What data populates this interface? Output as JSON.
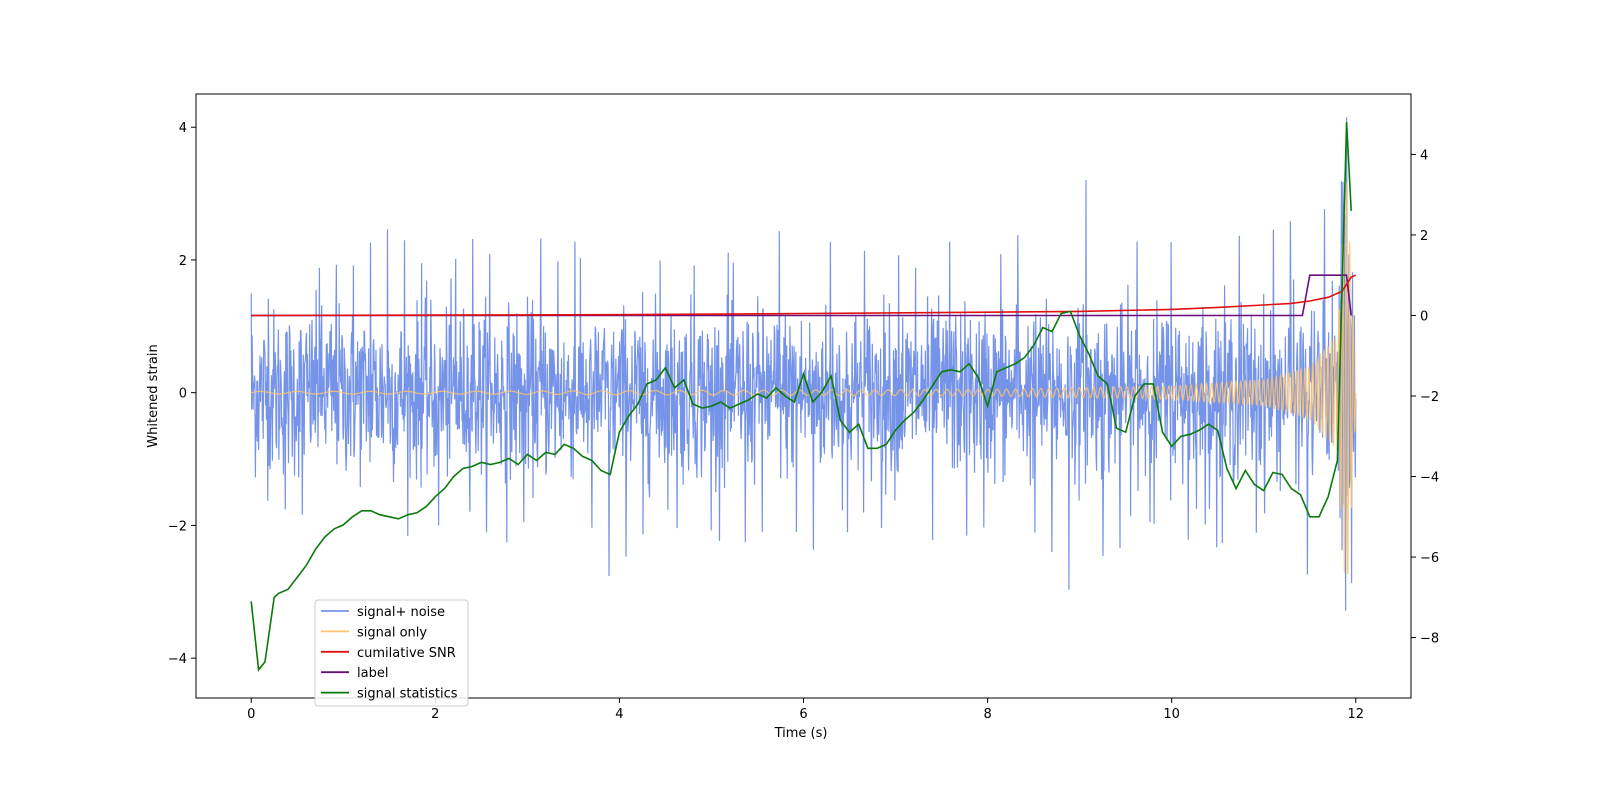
{
  "chart_data": {
    "type": "line",
    "xlabel": "Time (s)",
    "ylabel": "Whitened strain",
    "xlim": [
      -0.6,
      12.6
    ],
    "ylim": [
      -4.6,
      4.5
    ],
    "y2lim": [
      -9.5,
      5.5
    ],
    "x_ticks": [
      0,
      2,
      4,
      6,
      8,
      10,
      12
    ],
    "y_ticks": [
      -4,
      -2,
      0,
      2,
      4
    ],
    "y2_ticks": [
      -8,
      -6,
      -4,
      -2,
      0,
      2,
      4
    ],
    "x_tick_labels": [
      "0",
      "2",
      "4",
      "6",
      "8",
      "10",
      "12"
    ],
    "y_tick_labels": [
      "−4",
      "−2",
      "0",
      "2",
      "4"
    ],
    "y2_tick_labels": [
      "−8",
      "−6",
      "−4",
      "−2",
      "0",
      "2",
      "4"
    ],
    "legend_position": "lower-left",
    "grid": false,
    "series": [
      {
        "name": "signal+ noise",
        "axis": "left",
        "color": "#7593e8",
        "description_values": "dense noise roughly between -2.5 and 2.8, with spikes up to about 4.1 near t=11.95",
        "x": [
          0,
          0.5,
          1,
          1.5,
          2,
          2.5,
          3,
          3.5,
          4,
          4.5,
          5,
          5.5,
          6,
          6.5,
          7,
          7.5,
          8,
          8.5,
          9,
          9.5,
          10,
          10.5,
          11,
          11.5,
          12
        ],
        "values": [
          1.5,
          1.9,
          2.1,
          2.5,
          2.3,
          2.6,
          2.4,
          2.3,
          2.9,
          2.4,
          2.2,
          2.4,
          2.5,
          2.2,
          2.3,
          2.4,
          2.4,
          2.5,
          3.4,
          2.2,
          2.6,
          2.4,
          2.4,
          2.8,
          4.1
        ]
      },
      {
        "name": "signal only",
        "axis": "left",
        "color": "#ffc36b",
        "description_values": "chirp oscillation with envelope growing from ~0.02 to ~3.3 at t≈11.9",
        "x": [
          0,
          2,
          4,
          6,
          8,
          10,
          11,
          11.5,
          11.8,
          11.9,
          12
        ],
        "values": [
          0.02,
          0.02,
          0.03,
          0.04,
          0.05,
          0.1,
          0.2,
          0.4,
          0.9,
          3.3,
          0.3
        ]
      },
      {
        "name": "cumilative SNR",
        "axis": "right",
        "color": "#e01010",
        "x": [
          0,
          2,
          4,
          6,
          8,
          9,
          10,
          10.5,
          11,
          11.3,
          11.5,
          11.7,
          11.85,
          11.95,
          12
        ],
        "values": [
          0.0,
          0.01,
          0.02,
          0.05,
          0.08,
          0.1,
          0.15,
          0.2,
          0.26,
          0.3,
          0.36,
          0.45,
          0.6,
          0.95,
          1.0
        ]
      },
      {
        "name": "label",
        "axis": "right",
        "color": "#6a0f7a",
        "x": [
          0,
          11.42,
          11.5,
          11.9,
          11.95
        ],
        "values": [
          0,
          0,
          1,
          1,
          0
        ]
      },
      {
        "name": "signal statistics",
        "axis": "right",
        "color": "#0a7a0a",
        "x": [
          0,
          0.08,
          0.15,
          0.25,
          0.3,
          0.4,
          0.5,
          0.6,
          0.7,
          0.8,
          0.9,
          1.0,
          1.1,
          1.2,
          1.3,
          1.4,
          1.5,
          1.6,
          1.7,
          1.8,
          1.9,
          2.0,
          2.1,
          2.2,
          2.3,
          2.4,
          2.5,
          2.6,
          2.7,
          2.8,
          2.9,
          3.0,
          3.1,
          3.2,
          3.3,
          3.4,
          3.5,
          3.6,
          3.7,
          3.8,
          3.9,
          4.0,
          4.1,
          4.2,
          4.3,
          4.4,
          4.5,
          4.6,
          4.7,
          4.8,
          4.9,
          5.0,
          5.1,
          5.2,
          5.3,
          5.4,
          5.5,
          5.6,
          5.7,
          5.8,
          5.9,
          6.0,
          6.1,
          6.2,
          6.3,
          6.4,
          6.5,
          6.6,
          6.7,
          6.8,
          6.9,
          7.0,
          7.1,
          7.2,
          7.3,
          7.4,
          7.5,
          7.6,
          7.7,
          7.8,
          7.9,
          8.0,
          8.1,
          8.2,
          8.3,
          8.4,
          8.5,
          8.6,
          8.7,
          8.8,
          8.9,
          9.0,
          9.1,
          9.2,
          9.3,
          9.4,
          9.5,
          9.6,
          9.7,
          9.8,
          9.9,
          10.0,
          10.1,
          10.2,
          10.3,
          10.4,
          10.5,
          10.6,
          10.7,
          10.8,
          10.9,
          11.0,
          11.1,
          11.2,
          11.3,
          11.4,
          11.5,
          11.6,
          11.7,
          11.8,
          11.9,
          11.95
        ],
        "values": [
          -7.1,
          -8.8,
          -8.6,
          -7.0,
          -6.9,
          -6.8,
          -6.5,
          -6.2,
          -5.8,
          -5.5,
          -5.3,
          -5.2,
          -5.0,
          -4.85,
          -4.85,
          -4.95,
          -5.0,
          -5.05,
          -4.95,
          -4.9,
          -4.75,
          -4.5,
          -4.3,
          -4.0,
          -3.8,
          -3.75,
          -3.65,
          -3.7,
          -3.65,
          -3.55,
          -3.7,
          -3.45,
          -3.6,
          -3.4,
          -3.45,
          -3.2,
          -3.3,
          -3.5,
          -3.6,
          -3.85,
          -3.95,
          -2.9,
          -2.5,
          -2.2,
          -1.7,
          -1.6,
          -1.3,
          -1.8,
          -1.6,
          -2.2,
          -2.3,
          -2.25,
          -2.15,
          -2.3,
          -2.2,
          -2.1,
          -1.95,
          -2.05,
          -1.8,
          -2.0,
          -2.15,
          -1.45,
          -2.15,
          -1.9,
          -1.5,
          -2.6,
          -2.9,
          -2.7,
          -3.3,
          -3.3,
          -3.2,
          -2.85,
          -2.6,
          -2.4,
          -2.1,
          -1.75,
          -1.4,
          -1.35,
          -1.4,
          -1.2,
          -1.55,
          -2.25,
          -1.4,
          -1.3,
          -1.2,
          -1.05,
          -0.75,
          -0.3,
          -0.4,
          0.05,
          0.1,
          -0.5,
          -0.95,
          -1.5,
          -1.7,
          -2.8,
          -2.9,
          -2.0,
          -1.7,
          -1.7,
          -2.9,
          -3.25,
          -3.0,
          -2.95,
          -2.85,
          -2.7,
          -2.85,
          -3.8,
          -4.3,
          -3.85,
          -4.2,
          -4.35,
          -3.9,
          -3.95,
          -4.3,
          -4.45,
          -5.0,
          -5.0,
          -4.5,
          -3.6,
          4.8,
          2.6
        ]
      }
    ]
  }
}
